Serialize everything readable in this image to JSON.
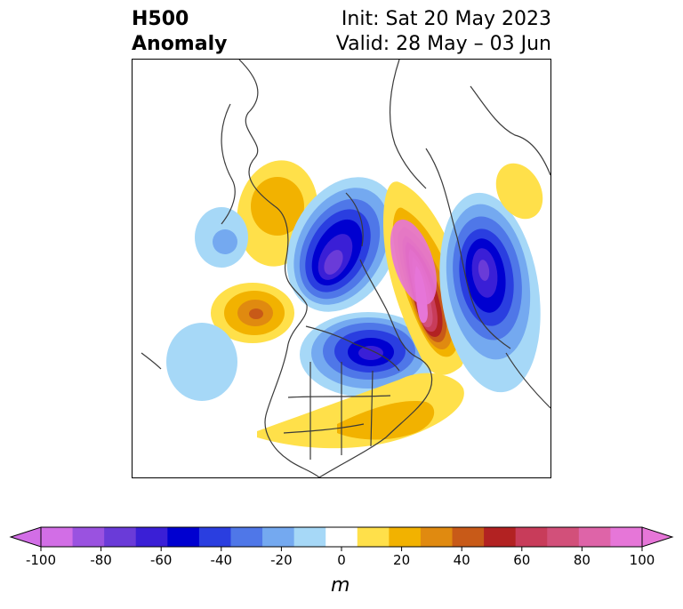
{
  "title": {
    "left_line1": "H500",
    "left_line2": "Anomaly",
    "right_line1": "Init: Sat 20 May 2023",
    "right_line2": "Valid: 28 May – 03 Jun"
  },
  "colorbar": {
    "unit": "m",
    "ticks": [
      "-100",
      "-80",
      "-60",
      "-40",
      "-20",
      "0",
      "20",
      "40",
      "60",
      "80",
      "100"
    ],
    "levels": [
      -100,
      -90,
      -80,
      -70,
      -60,
      -50,
      -40,
      -30,
      -20,
      -10,
      10,
      20,
      30,
      40,
      50,
      60,
      70,
      80,
      90,
      100
    ],
    "colors": [
      "#d26ee6",
      "#9a52e0",
      "#6a3bd8",
      "#3a1fd6",
      "#0000d0",
      "#2a3ee0",
      "#4f77e8",
      "#74a9f0",
      "#a6d8f7",
      "#ffffff",
      "#ffe04a",
      "#f2b200",
      "#e08a10",
      "#c85a18",
      "#b22222",
      "#c83c5a",
      "#d2507a",
      "#de64a8",
      "#e676d8"
    ],
    "under_color": "#d26ee6",
    "over_color": "#e676d8",
    "extend": "both"
  },
  "map": {
    "projection": "north-polar-stereographic",
    "region": "North America and Northern Hemisphere polar region",
    "anomaly_centers": [
      {
        "sign": "negative",
        "value": -80,
        "location": "Hudson Bay / central Canada"
      },
      {
        "sign": "negative",
        "value": -70,
        "location": "East Siberian Sea"
      },
      {
        "sign": "negative",
        "value": -60,
        "location": "western Russia"
      },
      {
        "sign": "positive",
        "value": 90,
        "location": "Barents Sea / Scandinavia"
      },
      {
        "sign": "positive",
        "value": 50,
        "location": "Gulf of Alaska"
      },
      {
        "sign": "positive",
        "value": 30,
        "location": "Bering Strait / Chukotka"
      },
      {
        "sign": "positive",
        "value": 20,
        "location": "eastern United States"
      },
      {
        "sign": "negative",
        "value": -30,
        "location": "central Pacific"
      },
      {
        "sign": "negative",
        "value": -20,
        "location": "subtropical eastern Pacific"
      }
    ]
  }
}
